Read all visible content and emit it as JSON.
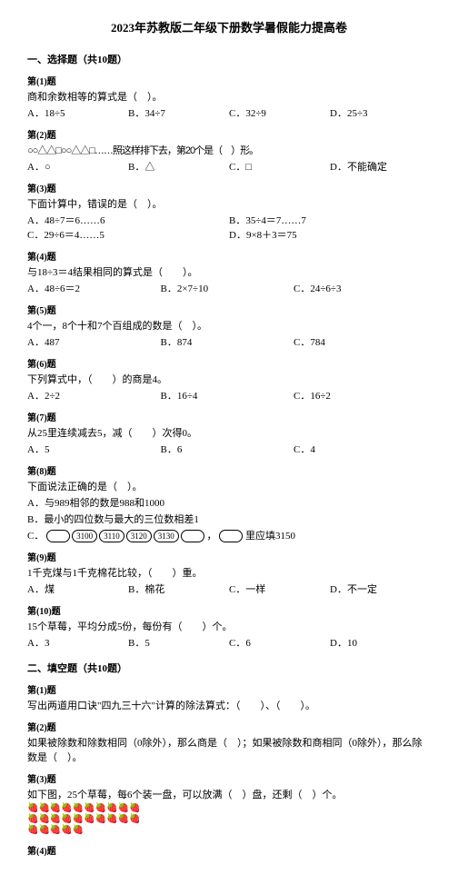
{
  "title": "2023年苏教版二年级下册数学暑假能力提高卷",
  "sections": {
    "s1": "一、选择题（共10题）",
    "s2": "二、填空题（共10题）"
  },
  "q1": {
    "label": "第(1)题",
    "text": "商和余数相等的算式是（　）。",
    "a": "A．18÷5",
    "b": "B．34÷7",
    "c": "C．32÷9",
    "d": "D．25÷3"
  },
  "q2": {
    "label": "第(2)题",
    "shapes": "○○△△□○○△△□……照这样排下去，第20个是（　）形。",
    "a": "A．○",
    "b": "B．△",
    "c": "C．□",
    "d": "D．不能确定"
  },
  "q3": {
    "label": "第(3)题",
    "text": "下面计算中，错误的是（　）。",
    "a": "A．48÷7＝6……6",
    "b": "B．35÷4＝7……7",
    "c": "C．29÷6＝4……5",
    "d": "D．9×8＋3＝75"
  },
  "q4": {
    "label": "第(4)题",
    "text": "与18÷3＝4结果相同的算式是（　　）。",
    "a": "A．48÷6＝2",
    "b": "B．2×7÷10",
    "c": "C．24÷6÷3"
  },
  "q5": {
    "label": "第(5)题",
    "text": "4个一，8个十和7个百组成的数是（　）。",
    "a": "A．487",
    "b": "B．874",
    "c": "C．784"
  },
  "q6": {
    "label": "第(6)题",
    "text": "下列算式中，（　　）的商是4。",
    "a": "A．2÷2",
    "b": "B．16÷4",
    "c": "C．16÷2"
  },
  "q7": {
    "label": "第(7)题",
    "text": "从25里连续减去5，减（　　）次得0。",
    "a": "A．5",
    "b": "B．6",
    "c": "C．4"
  },
  "q8": {
    "label": "第(8)题",
    "text": "下面说法正确的是（　）。",
    "a": "A．与989相邻的数是988和1000",
    "b": "B．最小的四位数与最大的三位数相差1",
    "cPrefix": "C．",
    "cVals": [
      "3100",
      "3110",
      "3120",
      "3130"
    ],
    "cSuffix": "，",
    "cEnd": "里应填3150"
  },
  "q9": {
    "label": "第(9)题",
    "text": "1千克煤与1千克棉花比较，（　　）重。",
    "a": "A．煤",
    "b": "B．棉花",
    "c": "C．一样",
    "d": "D．不一定"
  },
  "q10": {
    "label": "第(10)题",
    "text": "15个草莓，平均分成5份，每份有（　　）个。",
    "a": "A．3",
    "b": "B．5",
    "c": "C．6",
    "d": "D．10"
  },
  "fq1": {
    "label": "第(1)题",
    "text": "写出两道用口诀\"四九三十六\"计算的除法算式：（　　）、（　　）。"
  },
  "fq2": {
    "label": "第(2)题",
    "text": "如果被除数和除数相同（0除外），那么商是（　）；如果被除数和商相同（0除外），那么除数是（　）。"
  },
  "fq3": {
    "label": "第(3)题",
    "text": "如下图，25个草莓，每6个装一盘，可以放满（　）盘，还剩（　）个。"
  },
  "fq4": {
    "label": "第(4)题"
  }
}
